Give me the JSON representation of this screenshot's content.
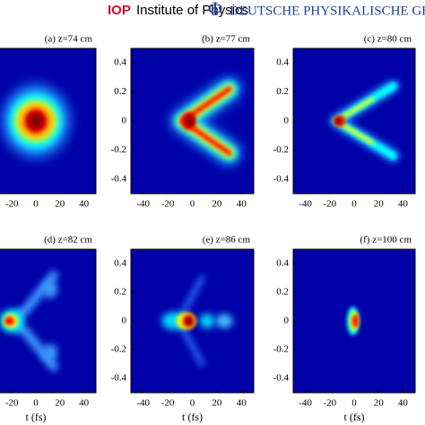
{
  "header": {
    "iop": "IOP",
    "institute": "Institute of Physics",
    "phi": "Φ",
    "dpg": "DEUTSCHE PHYSIKALISCHE GES"
  },
  "chart_data": [
    {
      "type": "heatmap",
      "title": "(a) z=74 cm",
      "xlim": [
        -50,
        50
      ],
      "ylim": [
        -0.5,
        0.5
      ],
      "xticks": [
        -20,
        0,
        20,
        40
      ],
      "yticks": []
    },
    {
      "type": "heatmap",
      "title": "(b) z=77 cm",
      "xlim": [
        -50,
        50
      ],
      "ylim": [
        -0.5,
        0.5
      ],
      "xticks": [
        -40,
        -20,
        0,
        20,
        40
      ],
      "yticks": [
        -0.4,
        -0.2,
        0,
        0.2,
        0.4
      ]
    },
    {
      "type": "heatmap",
      "title": "(c) z=80 cm",
      "xlim": [
        -50,
        50
      ],
      "ylim": [
        -0.5,
        0.5
      ],
      "xticks": [
        -40,
        -20,
        0,
        20,
        40
      ],
      "yticks": [
        -0.4,
        -0.2,
        0,
        0.2,
        0.4
      ]
    },
    {
      "type": "heatmap",
      "title": "(d) z=82 cm",
      "xlim": [
        -50,
        50
      ],
      "ylim": [
        -0.5,
        0.5
      ],
      "xticks": [
        -20,
        0,
        20,
        40
      ],
      "yticks": [],
      "xlabel": "t (fs)"
    },
    {
      "type": "heatmap",
      "title": "(e) z=86 cm",
      "xlim": [
        -50,
        50
      ],
      "ylim": [
        -0.5,
        0.5
      ],
      "xticks": [
        -40,
        -20,
        0,
        20,
        40
      ],
      "yticks": [
        -0.4,
        -0.2,
        0,
        0.2,
        0.4
      ],
      "xlabel": "t (fs)"
    },
    {
      "type": "heatmap",
      "title": "(f) z=100 cm",
      "xlim": [
        -50,
        50
      ],
      "ylim": [
        -0.5,
        0.5
      ],
      "xticks": [
        -40,
        -20,
        0,
        20,
        40
      ],
      "yticks": [
        -0.4,
        -0.2,
        0,
        0.2,
        0.4
      ],
      "xlabel": "t (fs)"
    }
  ]
}
